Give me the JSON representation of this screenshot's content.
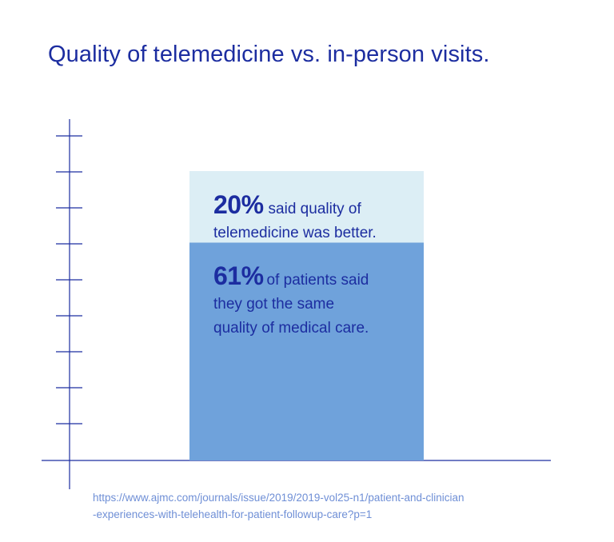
{
  "title": "Quality of telemedicine vs. in-person visits.",
  "colors": {
    "title": "#1c2da0",
    "axis": "#1c2da0",
    "segment_better": "#dceef5",
    "segment_same": "#6fa2db",
    "source": "#6f8fd6"
  },
  "chart_data": {
    "type": "bar",
    "stacked": true,
    "categories": [
      ""
    ],
    "series": [
      {
        "value": 61,
        "label": "61%",
        "text_lines": [
          "of patients said",
          "they got the same",
          "quality of medical care."
        ],
        "color": "#6fa2db"
      },
      {
        "value": 20,
        "label": "20%",
        "text_lines": [
          "said quality of",
          "telemedicine was better."
        ],
        "color": "#dceef5"
      }
    ],
    "y_tick_count": 9,
    "tick_labels_shown": false,
    "grid": false,
    "legend": "none"
  },
  "source": {
    "line1": "https://www.ajmc.com/journals/issue/2019/2019-vol25-n1/patient-and-clinician",
    "line2": "-experiences-with-telehealth-for-patient-followup-care?p=1"
  }
}
